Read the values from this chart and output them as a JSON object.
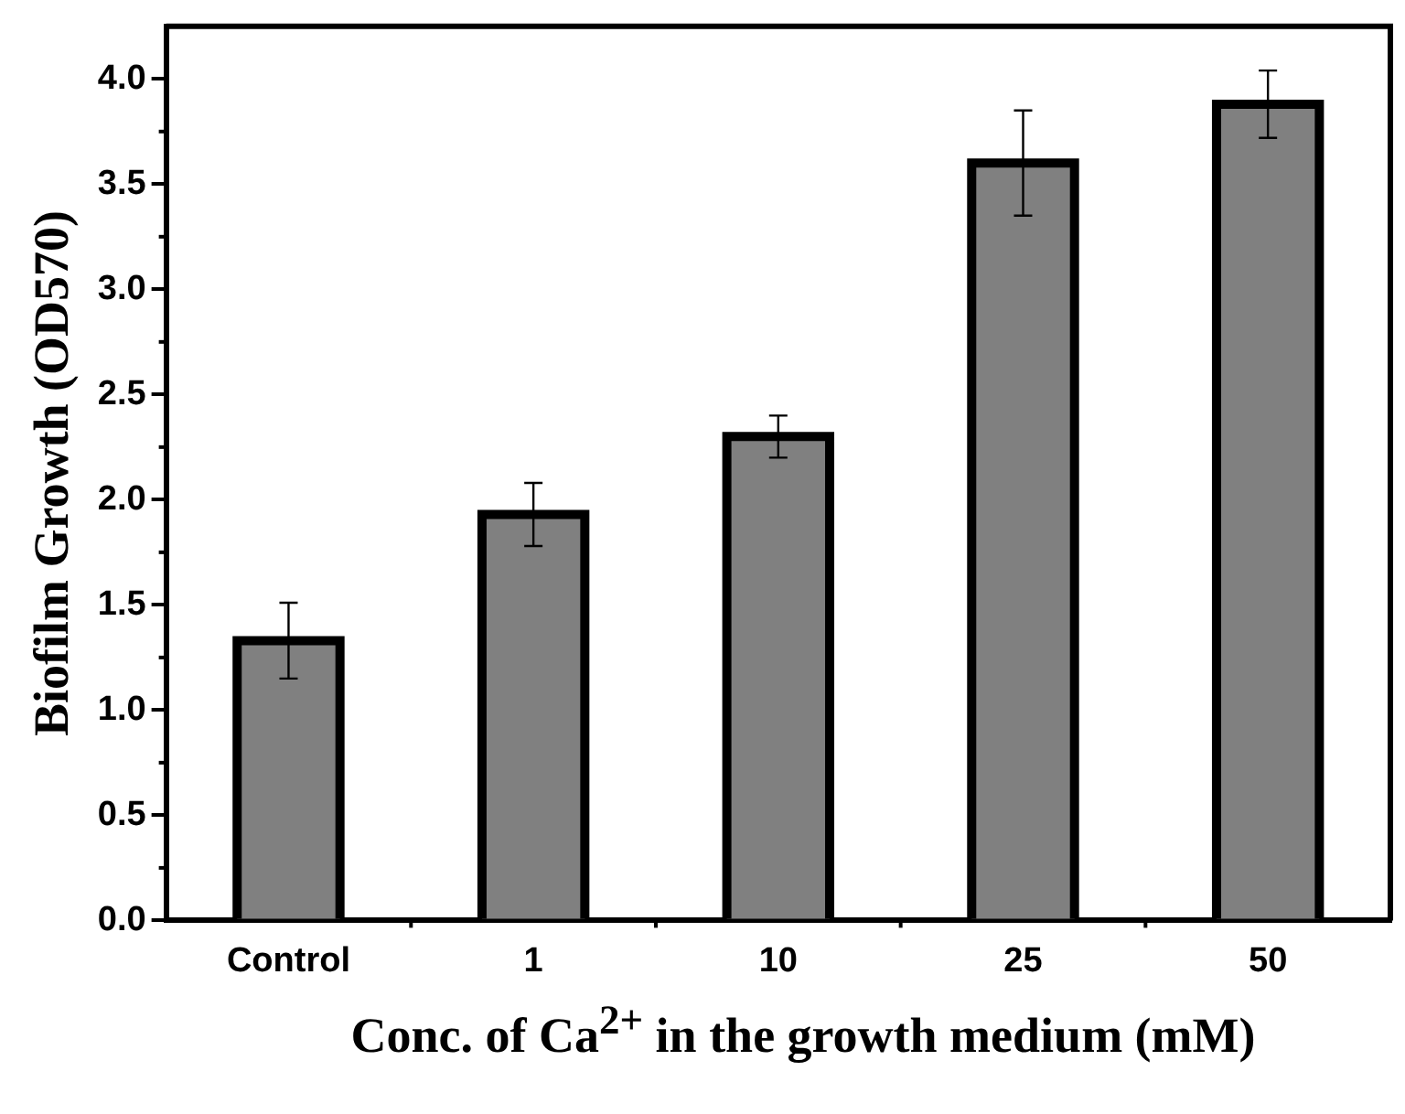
{
  "chart_data": {
    "type": "bar",
    "xlabel": "Conc.  of Ca$^{2+}$ in the growth medium (mM)",
    "ylabel": "Biofilm Growth (OD570)",
    "categories": [
      "Control",
      "1",
      "10",
      "25",
      "50"
    ],
    "values": [
      1.33,
      1.93,
      2.3,
      3.6,
      3.88
    ],
    "errors": [
      0.18,
      0.15,
      0.1,
      0.25,
      0.16
    ],
    "color": "#808080",
    "ylim": [
      0,
      4.25
    ],
    "yticks": [
      {
        "value": 0,
        "label": "0.0"
      },
      {
        "value": 0.5,
        "label": "0.5"
      },
      {
        "value": 1,
        "label": "1.0"
      },
      {
        "value": 1.5,
        "label": "1.5"
      },
      {
        "value": 2,
        "label": "2.0"
      },
      {
        "value": 2.5,
        "label": "2.5"
      },
      {
        "value": 3,
        "label": "3.0"
      },
      {
        "value": 3.5,
        "label": "3.5"
      },
      {
        "value": 4,
        "label": "4.0"
      }
    ],
    "grid": false,
    "legend": false
  }
}
